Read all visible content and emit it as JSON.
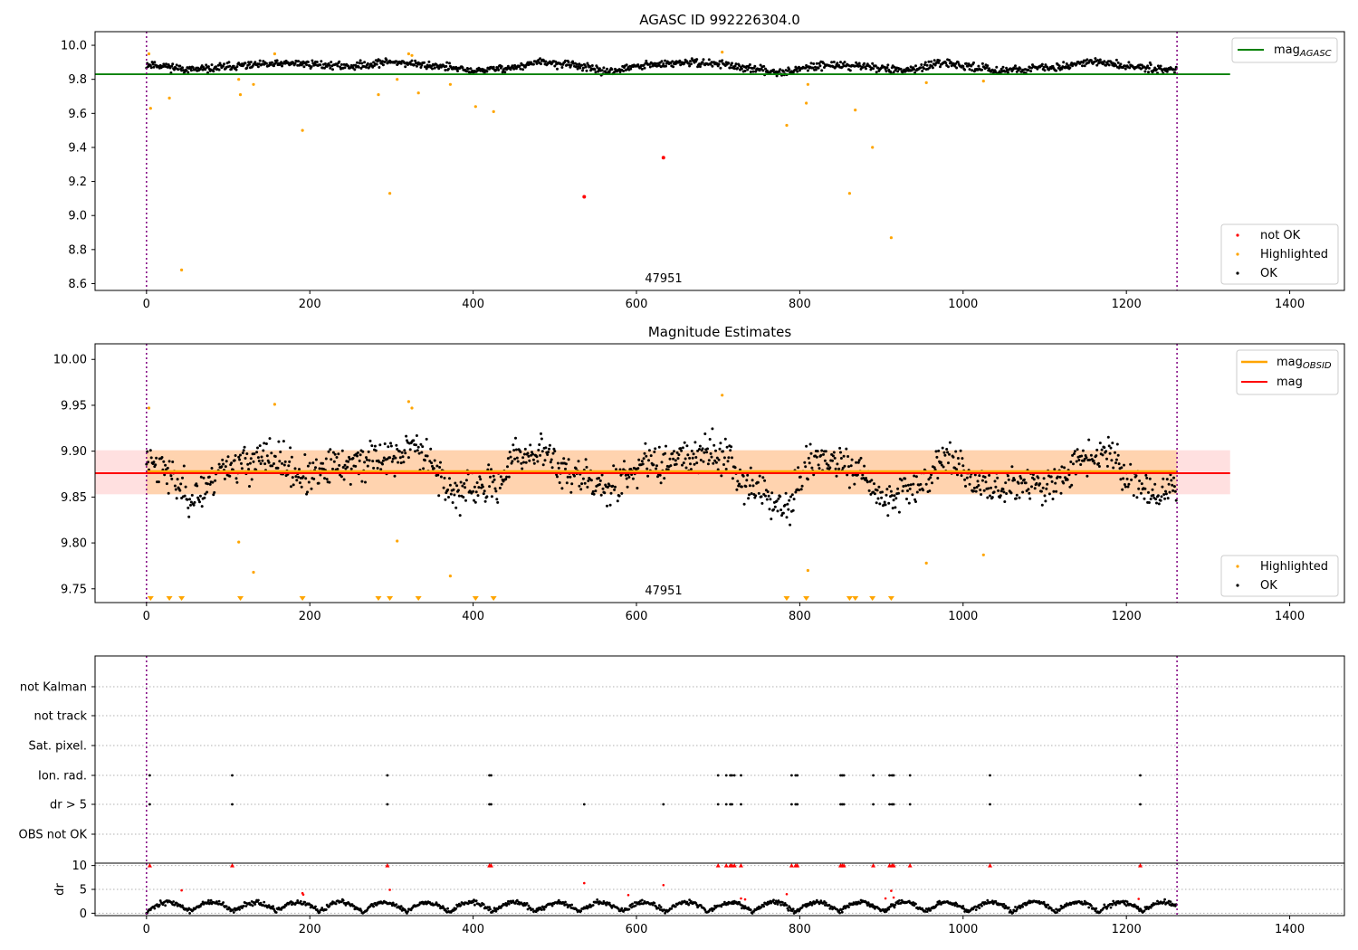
{
  "chart_data": [
    {
      "type": "scatter",
      "title": "AGASC ID 992226304.0",
      "xlabel": "",
      "ylabel": "",
      "xlim": [
        -63,
        1467
      ],
      "ylim": [
        8.56,
        10.08
      ],
      "xticks": [
        0,
        200,
        400,
        600,
        800,
        1000,
        1200,
        1400
      ],
      "yticks": [
        8.6,
        8.8,
        9.0,
        9.2,
        9.4,
        9.6,
        9.8,
        10.0
      ],
      "ytick_labels": [
        "8.6",
        "8.8",
        "9.0",
        "9.2",
        "9.4",
        "9.6",
        "9.8",
        "10.0"
      ],
      "obs_boundaries": [
        0,
        1262
      ],
      "obs_label": "47951",
      "hline": {
        "name": "mag",
        "sub": "AGASC",
        "y": 9.83,
        "x_range": [
          -63,
          1327
        ],
        "color": "#008000"
      },
      "legend_top": "top-right",
      "legend_bottom": "lower-right",
      "ok_series": {
        "name": "OK",
        "color": "#000000",
        "n": 1262,
        "mean": 9.875,
        "amp": 0.03,
        "noise": 0.02,
        "seed": 11,
        "profile_knots": [
          [
            0,
            0.4
          ],
          [
            60,
            -0.6
          ],
          [
            120,
            0.2
          ],
          [
            180,
            0.6
          ],
          [
            250,
            0.1
          ],
          [
            300,
            0.9
          ],
          [
            350,
            0.2
          ],
          [
            400,
            -0.8
          ],
          [
            450,
            -0.2
          ],
          [
            480,
            0.8
          ],
          [
            520,
            0.4
          ],
          [
            560,
            -0.9
          ],
          [
            620,
            0.3
          ],
          [
            660,
            0.8
          ],
          [
            700,
            0.6
          ],
          [
            740,
            -0.5
          ],
          [
            780,
            -1.0
          ],
          [
            830,
            0.3
          ],
          [
            880,
            0.1
          ],
          [
            920,
            -0.7
          ],
          [
            980,
            0.5
          ],
          [
            1020,
            -0.2
          ],
          [
            1040,
            -0.7
          ],
          [
            1100,
            -0.3
          ],
          [
            1160,
            0.9
          ],
          [
            1200,
            0.1
          ],
          [
            1262,
            -0.6
          ]
        ]
      },
      "highlighted": {
        "name": "Highlighted",
        "color": "#ffa500",
        "points": [
          [
            3,
            9.95
          ],
          [
            5,
            9.63
          ],
          [
            28,
            9.69
          ],
          [
            43,
            8.68
          ],
          [
            113,
            9.8
          ],
          [
            115,
            9.71
          ],
          [
            131,
            9.77
          ],
          [
            157,
            9.95
          ],
          [
            191,
            9.5
          ],
          [
            284,
            9.71
          ],
          [
            298,
            9.13
          ],
          [
            307,
            9.8
          ],
          [
            321,
            9.95
          ],
          [
            325,
            9.94
          ],
          [
            333,
            9.72
          ],
          [
            372,
            9.77
          ],
          [
            403,
            9.64
          ],
          [
            425,
            9.61
          ],
          [
            705,
            9.96
          ],
          [
            784,
            9.53
          ],
          [
            808,
            9.66
          ],
          [
            810,
            9.77
          ],
          [
            861,
            9.13
          ],
          [
            868,
            9.62
          ],
          [
            889,
            9.4
          ],
          [
            912,
            8.87
          ],
          [
            955,
            9.78
          ],
          [
            1025,
            9.79
          ]
        ]
      },
      "not_ok": {
        "name": "not OK",
        "color": "#ff0000",
        "points": [
          [
            536,
            9.11
          ],
          [
            633,
            9.34
          ]
        ]
      }
    },
    {
      "type": "scatter",
      "title": "Magnitude Estimates",
      "xlabel": "",
      "ylabel": "",
      "xlim": [
        -63,
        1467
      ],
      "ylim": [
        9.735,
        10.017
      ],
      "xticks": [
        0,
        200,
        400,
        600,
        800,
        1000,
        1200,
        1400
      ],
      "yticks": [
        9.75,
        9.8,
        9.85,
        9.9,
        9.95,
        10.0
      ],
      "ytick_labels": [
        "9.75",
        "9.80",
        "9.85",
        "9.90",
        "9.95",
        "10.00"
      ],
      "obs_boundaries": [
        0,
        1262
      ],
      "obs_label": "47951",
      "band_obsid": {
        "lo": 9.853,
        "hi": 9.901,
        "x_range": [
          0,
          1262
        ],
        "color": "#ffa500"
      },
      "band_mag": {
        "lo": 9.853,
        "hi": 9.901,
        "x_range": [
          -63,
          1327
        ],
        "color": "#ff0000"
      },
      "mag_obsid": {
        "name": "mag",
        "sub": "OBSID",
        "y": 9.877,
        "color": "#ffa500"
      },
      "mag_line": {
        "name": "mag",
        "y": 9.877,
        "color": "#ff0000"
      },
      "legend_top": "top-right",
      "legend_bottom": "lower-right",
      "ok_series": {
        "name": "OK",
        "color": "#000000",
        "n": 1262,
        "mean": 9.877,
        "amp": 0.028,
        "noise": 0.018,
        "seed": 23,
        "profile_knots": [
          [
            0,
            0.5
          ],
          [
            60,
            -0.9
          ],
          [
            100,
            0.3
          ],
          [
            150,
            0.5
          ],
          [
            200,
            -0.2
          ],
          [
            240,
            0.3
          ],
          [
            300,
            0.6
          ],
          [
            330,
            1.0
          ],
          [
            380,
            -0.8
          ],
          [
            420,
            -0.6
          ],
          [
            460,
            0.7
          ],
          [
            480,
            0.8
          ],
          [
            520,
            0.0
          ],
          [
            560,
            -0.6
          ],
          [
            620,
            0.4
          ],
          [
            660,
            0.7
          ],
          [
            700,
            0.8
          ],
          [
            740,
            -0.5
          ],
          [
            780,
            -1.4
          ],
          [
            820,
            0.6
          ],
          [
            870,
            0.0
          ],
          [
            900,
            -1.0
          ],
          [
            940,
            -0.5
          ],
          [
            980,
            0.6
          ],
          [
            1020,
            -0.5
          ],
          [
            1040,
            -0.6
          ],
          [
            1100,
            -0.5
          ],
          [
            1160,
            0.6
          ],
          [
            1180,
            0.9
          ],
          [
            1200,
            -0.2
          ],
          [
            1240,
            -0.9
          ],
          [
            1262,
            -0.6
          ]
        ]
      },
      "highlighted": {
        "name": "Highlighted",
        "color": "#ffa500",
        "points": [
          [
            3,
            9.947
          ],
          [
            113,
            9.801
          ],
          [
            131,
            9.768
          ],
          [
            157,
            9.951
          ],
          [
            321,
            9.954
          ],
          [
            325,
            9.947
          ],
          [
            307,
            9.802
          ],
          [
            372,
            9.764
          ],
          [
            705,
            9.961
          ],
          [
            810,
            9.77
          ],
          [
            955,
            9.778
          ],
          [
            1025,
            9.787
          ]
        ]
      },
      "below_axis_markers": [
        5,
        28,
        43,
        115,
        191,
        284,
        298,
        333,
        403,
        425,
        784,
        808,
        861,
        868,
        889,
        912
      ]
    },
    {
      "type": "scatter",
      "title": "",
      "xlabel": "",
      "ylabel": "",
      "xlim": [
        -63,
        1467
      ],
      "xticks": [
        0,
        200,
        400,
        600,
        800,
        1000,
        1200,
        1400
      ],
      "flag_rows": [
        "not Kalman",
        "not track",
        "Sat. pixel.",
        "Ion. rad.",
        "dr > 5",
        "OBS not OK"
      ],
      "flag_points": {
        "Ion. rad.": [
          4,
          105,
          295,
          420,
          422,
          700,
          710,
          715,
          717,
          720,
          728,
          790,
          795,
          797,
          850,
          852,
          854,
          890,
          910,
          913,
          915,
          935,
          1033,
          1217
        ],
        "dr > 5": [
          4,
          105,
          295,
          420,
          422,
          536,
          633,
          700,
          710,
          715,
          717,
          728,
          790,
          795,
          797,
          850,
          852,
          854,
          890,
          910,
          913,
          915,
          935,
          1033,
          1217
        ]
      },
      "obs_boundaries": [
        0,
        1262
      ]
    },
    {
      "type": "scatter",
      "title": "",
      "xlabel": "",
      "ylabel": "dr",
      "xlim": [
        -63,
        1467
      ],
      "ylim": [
        -0.5,
        10.5
      ],
      "xticks": [
        0,
        200,
        400,
        600,
        800,
        1000,
        1200,
        1400
      ],
      "yticks": [
        0,
        5,
        10
      ],
      "ytick_labels": [
        "0",
        "5",
        "10"
      ],
      "obs_boundaries": [
        0,
        1262
      ],
      "dr_series": {
        "name": "dr",
        "color": "#000000",
        "n": 1262,
        "seed": 37
      },
      "dr_outliers": {
        "color": "#ff0000",
        "points": [
          [
            43,
            4.8
          ],
          [
            191,
            4.2
          ],
          [
            192,
            3.9
          ],
          [
            298,
            4.9
          ],
          [
            536,
            6.3
          ],
          [
            590,
            3.8
          ],
          [
            633,
            5.9
          ],
          [
            728,
            3.1
          ],
          [
            733,
            2.9
          ],
          [
            784,
            4.0
          ],
          [
            905,
            3.1
          ],
          [
            912,
            4.7
          ],
          [
            915,
            3.3
          ],
          [
            1215,
            3.0
          ]
        ],
        "clipped": [
          4,
          105,
          295,
          420,
          422,
          700,
          710,
          715,
          717,
          720,
          728,
          790,
          795,
          797,
          850,
          852,
          854,
          890,
          910,
          913,
          915,
          935,
          1033,
          1217
        ]
      }
    }
  ],
  "legend": {
    "mag_main": "mag",
    "agasc_sub": "AGASC",
    "obsid_sub": "OBSID",
    "not_ok": "not OK",
    "highlighted": "Highlighted",
    "ok": "OK"
  },
  "colors": {
    "ok": "#000000",
    "highlighted": "#ffa500",
    "not_ok": "#ff0000",
    "agasc": "#008000",
    "boundary": "#800080"
  }
}
